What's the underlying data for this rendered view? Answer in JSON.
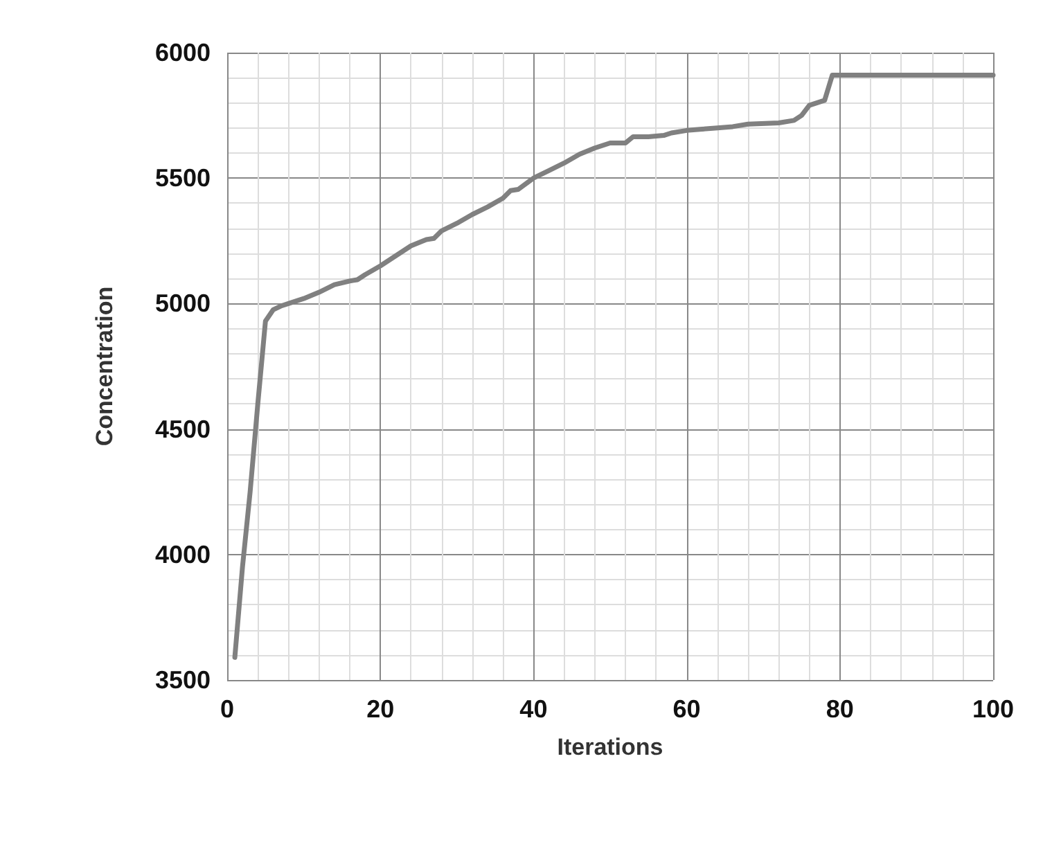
{
  "chart_data": {
    "type": "line",
    "xlabel": "Iterations",
    "ylabel": "Concentration",
    "x": [
      1,
      2,
      3,
      4,
      5,
      6,
      7,
      8,
      10,
      12,
      14,
      16,
      17,
      18,
      20,
      22,
      24,
      26,
      27,
      28,
      30,
      32,
      34,
      36,
      37,
      38,
      40,
      42,
      44,
      46,
      48,
      50,
      52,
      53,
      55,
      57,
      58,
      60,
      62,
      64,
      66,
      68,
      72,
      74,
      75,
      76,
      78,
      79,
      100
    ],
    "series": [
      {
        "color": "#808080",
        "values": [
          3590,
          3950,
          4250,
          4600,
          4930,
          4975,
          4990,
          5000,
          5020,
          5045,
          5075,
          5090,
          5095,
          5115,
          5150,
          5190,
          5230,
          5255,
          5260,
          5290,
          5320,
          5355,
          5385,
          5420,
          5450,
          5455,
          5500,
          5530,
          5560,
          5595,
          5620,
          5640,
          5640,
          5665,
          5665,
          5670,
          5680,
          5690,
          5695,
          5700,
          5705,
          5715,
          5720,
          5730,
          5750,
          5790,
          5810,
          5910,
          5910
        ]
      }
    ],
    "xlim": [
      0,
      100
    ],
    "xticks": [
      0,
      20,
      40,
      60,
      80,
      100
    ],
    "ylim": [
      3500,
      6000
    ],
    "yticks": [
      3500,
      4000,
      4500,
      5000,
      5500,
      6000
    ],
    "grid": true,
    "marker": "none",
    "line_style": "solid"
  }
}
